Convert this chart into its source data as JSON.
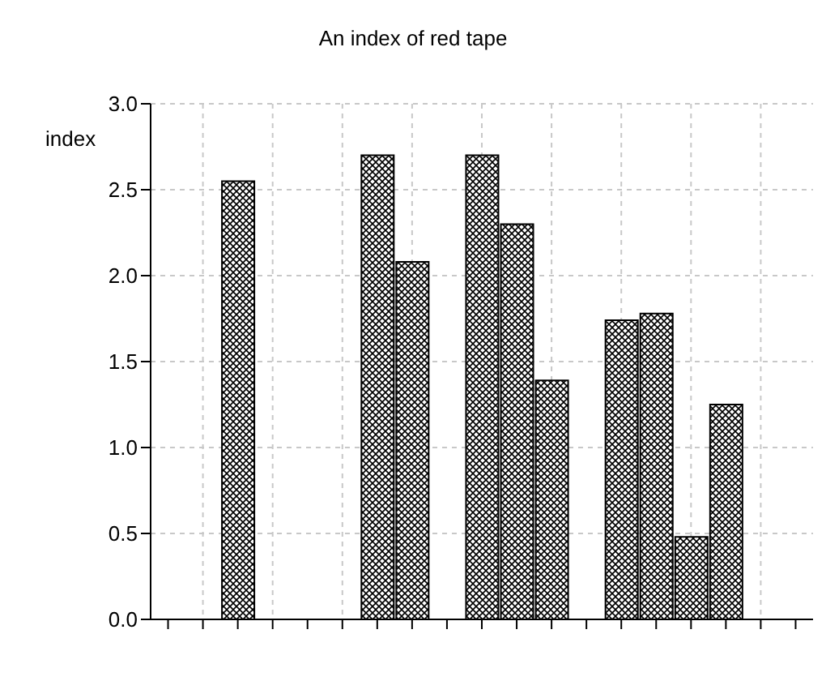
{
  "chart_data": {
    "type": "bar",
    "title": "An index of red tape",
    "ylabel": "index",
    "categories": [
      null,
      null,
      null,
      null,
      null,
      null,
      null,
      null,
      null,
      null,
      null,
      null,
      null,
      null,
      null,
      null,
      null,
      null,
      null
    ],
    "values": [
      null,
      null,
      2.55,
      null,
      null,
      null,
      2.7,
      2.08,
      null,
      2.7,
      2.3,
      1.39,
      null,
      1.74,
      1.78,
      0.48,
      1.25,
      null,
      null
    ],
    "color": "#000000",
    "ylim": [
      0,
      3
    ],
    "yticks": [
      {
        "value": 0,
        "label": "0.0"
      },
      {
        "value": 0.5,
        "label": "0.5"
      },
      {
        "value": 1,
        "label": "1.0"
      },
      {
        "value": 1.5,
        "label": "1.5"
      },
      {
        "value": 2,
        "label": "2.0"
      },
      {
        "value": 2.5,
        "label": "2.5"
      },
      {
        "value": 3,
        "label": "3.0"
      }
    ],
    "grid": true
  }
}
